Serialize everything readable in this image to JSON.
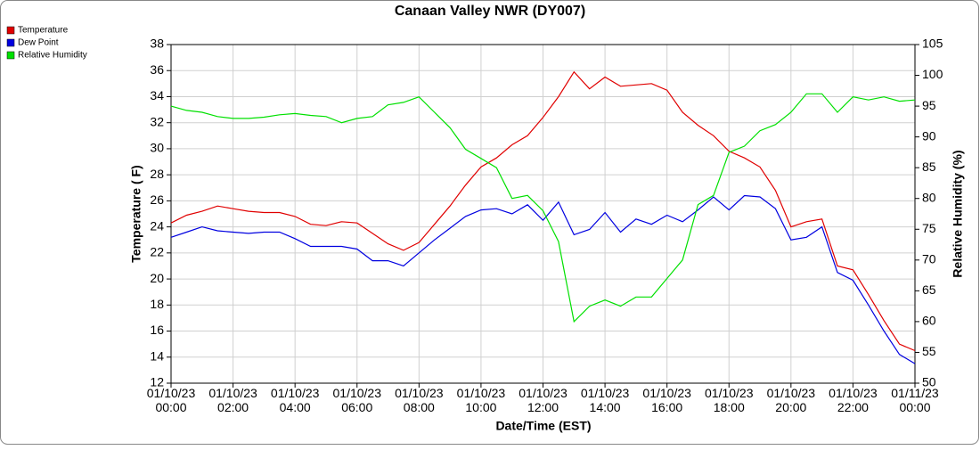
{
  "chart_data": {
    "type": "line",
    "title": "Canaan Valley NWR (DY007)",
    "xlabel": "Date/Time (EST)",
    "ylabel": "Temperature ( F)",
    "y2label": "Relative Humidity (%)",
    "x": [
      "01/10/23 00:00",
      "01/10/23 00:30",
      "01/10/23 01:00",
      "01/10/23 01:30",
      "01/10/23 02:00",
      "01/10/23 02:30",
      "01/10/23 03:00",
      "01/10/23 03:30",
      "01/10/23 04:00",
      "01/10/23 04:30",
      "01/10/23 05:00",
      "01/10/23 05:30",
      "01/10/23 06:00",
      "01/10/23 06:30",
      "01/10/23 07:00",
      "01/10/23 07:30",
      "01/10/23 08:00",
      "01/10/23 08:30",
      "01/10/23 09:00",
      "01/10/23 09:30",
      "01/10/23 10:00",
      "01/10/23 10:30",
      "01/10/23 11:00",
      "01/10/23 11:30",
      "01/10/23 12:00",
      "01/10/23 12:30",
      "01/10/23 13:00",
      "01/10/23 13:30",
      "01/10/23 14:00",
      "01/10/23 14:30",
      "01/10/23 15:00",
      "01/10/23 15:30",
      "01/10/23 16:00",
      "01/10/23 16:30",
      "01/10/23 17:00",
      "01/10/23 17:30",
      "01/10/23 18:00",
      "01/10/23 18:30",
      "01/10/23 19:00",
      "01/10/23 19:30",
      "01/10/23 20:00",
      "01/10/23 20:30",
      "01/10/23 21:00",
      "01/10/23 21:30",
      "01/10/23 22:00",
      "01/10/23 22:30",
      "01/10/23 23:00",
      "01/10/23 23:30",
      "01/11/23 00:00"
    ],
    "xticks": [
      "01/10/23 00:00",
      "01/10/23 02:00",
      "01/10/23 04:00",
      "01/10/23 06:00",
      "01/10/23 08:00",
      "01/10/23 10:00",
      "01/10/23 12:00",
      "01/10/23 14:00",
      "01/10/23 16:00",
      "01/10/23 18:00",
      "01/10/23 20:00",
      "01/10/23 22:00",
      "01/11/23 00:00"
    ],
    "ylim": [
      12,
      38
    ],
    "yticks": [
      12,
      14,
      16,
      18,
      20,
      22,
      24,
      26,
      28,
      30,
      32,
      34,
      36,
      38
    ],
    "y2lim": [
      50,
      105
    ],
    "y2ticks": [
      50,
      55,
      60,
      65,
      70,
      75,
      80,
      85,
      90,
      95,
      100,
      105
    ],
    "grid": true,
    "legend": "top-left",
    "series": [
      {
        "name": "Temperature",
        "color": "#e00000",
        "values": [
          24.3,
          24.9,
          25.2,
          25.6,
          25.4,
          25.2,
          25.1,
          25.1,
          24.8,
          24.2,
          24.1,
          24.4,
          24.3,
          23.5,
          22.7,
          22.2,
          22.8,
          24.2,
          25.6,
          27.2,
          28.6,
          29.3,
          30.3,
          31.0,
          32.4,
          34.0,
          35.9,
          34.6,
          35.5,
          34.8,
          34.9,
          35.0,
          34.5,
          32.8,
          31.8,
          31.0,
          29.8,
          29.3,
          28.6,
          26.8,
          24.0,
          24.4,
          24.6,
          21.0,
          20.7,
          18.8,
          16.8,
          15.0,
          14.5
        ]
      },
      {
        "name": "Dew Point",
        "color": "#0000e0",
        "values": [
          23.2,
          23.6,
          24.0,
          23.7,
          23.6,
          23.5,
          23.6,
          23.6,
          23.1,
          22.5,
          22.5,
          22.5,
          22.3,
          21.4,
          21.4,
          21.0,
          22.0,
          23.0,
          23.9,
          24.8,
          25.3,
          25.4,
          25.0,
          25.7,
          24.5,
          25.9,
          23.4,
          23.8,
          25.1,
          23.6,
          24.6,
          24.2,
          24.9,
          24.4,
          25.3,
          26.3,
          25.3,
          26.4,
          26.3,
          25.4,
          23.0,
          23.2,
          24.0,
          20.5,
          19.9,
          18.0,
          16.0,
          14.2,
          13.5
        ]
      },
      {
        "name": "Relative Humidity",
        "color": "#00e000",
        "axis": "y2",
        "values": [
          95,
          94.3,
          94,
          93.3,
          93,
          93,
          93.2,
          93.6,
          93.8,
          93.5,
          93.3,
          92.3,
          93,
          93.3,
          95.2,
          95.6,
          96.5,
          94,
          91.5,
          88,
          86.5,
          85,
          80,
          80.5,
          78,
          73,
          60,
          62.5,
          63.5,
          62.5,
          64,
          64,
          67,
          70,
          79,
          80.5,
          87.5,
          88.5,
          91,
          92,
          94,
          97,
          97,
          94,
          96.5,
          96,
          96.5,
          95.8,
          96
        ]
      }
    ]
  }
}
